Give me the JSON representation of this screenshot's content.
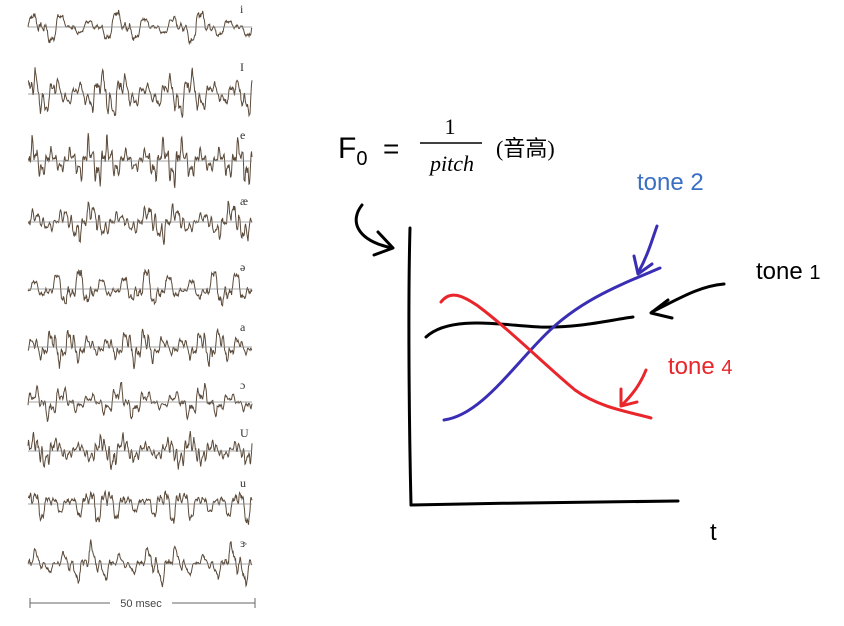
{
  "waveforms": {
    "vowels": [
      "i",
      "I",
      "e",
      "æ",
      "ə",
      "a",
      "ɔ",
      "U",
      "u",
      "ɝ"
    ],
    "duration_label": "50 msec",
    "trace_color": "#5a4a3a"
  },
  "formula": {
    "lhs_main": "F",
    "lhs_sub": "0",
    "equals": "=",
    "numerator": "1",
    "denominator": "pitch",
    "gloss": "(音高)"
  },
  "plot": {
    "x_axis_label": "t",
    "tones": [
      {
        "id": "tone1",
        "label": "tone 1",
        "label_main": "tone",
        "label_num": "1",
        "color": "#000000"
      },
      {
        "id": "tone2",
        "label": "tone 2",
        "label_main": "tone",
        "label_num": "2",
        "color": "#3a6fc4",
        "curve_color": "#3a2fb4"
      },
      {
        "id": "tone4",
        "label": "tone 4",
        "label_main": "tone",
        "label_num": "4",
        "color": "#e8262b"
      }
    ]
  }
}
